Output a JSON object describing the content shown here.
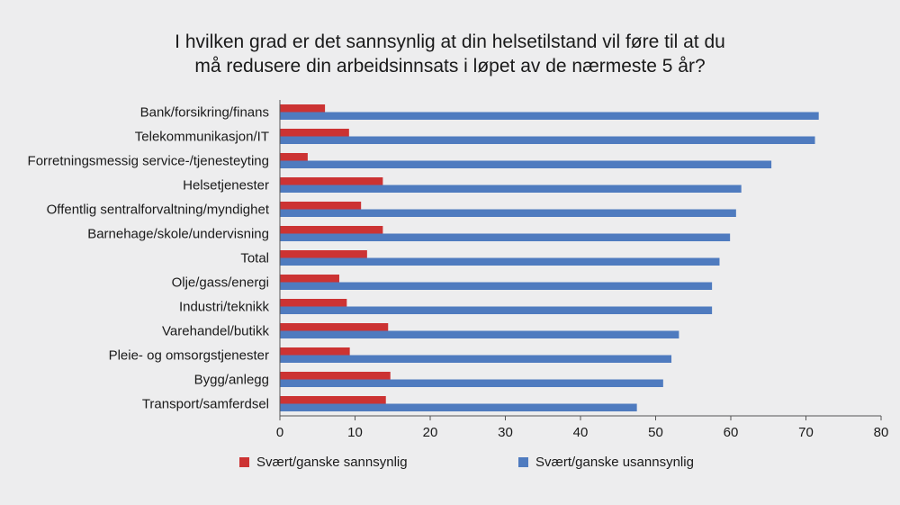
{
  "chart_data": {
    "type": "bar",
    "orientation": "horizontal",
    "title_lines": [
      "I hvilken grad er det sannsynlig at din helsetilstand vil føre til at du",
      "må redusere din arbeidsinnsats i  løpet av de nærmeste 5 år?"
    ],
    "categories": [
      "Bank/forsikring/finans",
      "Telekommunikasjon/IT",
      "Forretningsmessig service-/tjenesteyting",
      "Helsetjenester",
      "Offentlig sentralforvaltning/myndighet",
      "Barnehage/skole/undervisning",
      "Total",
      "Olje/gass/energi",
      "Industri/teknikk",
      "Varehandel/butikk",
      "Pleie- og omsorgstjenester",
      "Bygg/anlegg",
      "Transport/samferdsel"
    ],
    "series": [
      {
        "name": "Svært/ganske sannsynlig",
        "color": "#cc3333",
        "values": [
          6.0,
          9.2,
          3.7,
          13.7,
          10.8,
          13.7,
          11.6,
          7.9,
          8.9,
          14.4,
          9.3,
          14.7,
          14.1
        ]
      },
      {
        "name": "Svært/ganske usannsynlig",
        "color": "#4f7bbf",
        "values": [
          71.7,
          71.2,
          65.4,
          61.4,
          60.7,
          59.9,
          58.5,
          57.5,
          57.5,
          53.1,
          52.1,
          51.0,
          47.5
        ]
      }
    ],
    "xlim": [
      0,
      80
    ],
    "xticks": [
      "0",
      "10",
      "20",
      "30",
      "40",
      "50",
      "60",
      "70",
      "80"
    ],
    "grid": false,
    "legend_position": "bottom"
  }
}
